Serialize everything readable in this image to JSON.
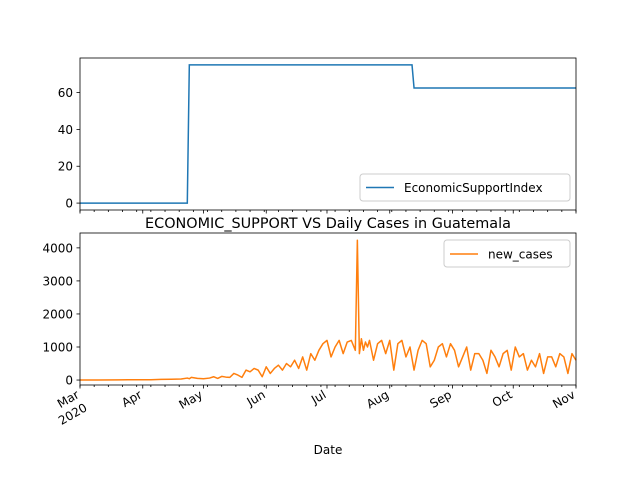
{
  "chart_data": [
    {
      "type": "line",
      "title": "",
      "xlabel": "",
      "ylabel": "",
      "ylim": [
        -3.75,
        78.75
      ],
      "yticks": [
        0,
        20,
        40,
        60
      ],
      "legend": "lower-right",
      "series": [
        {
          "name": "EconomicSupportIndex",
          "color": "#1f77b4",
          "x": [
            "2020-03-01",
            "2020-04-23",
            "2020-04-24",
            "2020-08-12",
            "2020-08-13",
            "2020-11-01"
          ],
          "values": [
            0,
            0,
            75,
            75,
            62.5,
            62.5
          ]
        }
      ]
    },
    {
      "type": "line",
      "title": "ECONOMIC_SUPPORT VS Daily Cases in Guatemala",
      "xlabel": "Date",
      "ylabel": "",
      "ylim": [
        -150,
        4450
      ],
      "yticks": [
        0,
        1000,
        2000,
        3000,
        4000
      ],
      "legend": "top-right",
      "xlim": [
        "2020-03-01",
        "2020-11-01"
      ],
      "xticks": [
        {
          "label": "Mar",
          "sub": "2020",
          "date": "2020-03-01"
        },
        {
          "label": "Apr",
          "sub": "",
          "date": "2020-04-01"
        },
        {
          "label": "May",
          "sub": "",
          "date": "2020-05-01"
        },
        {
          "label": "Jun",
          "sub": "",
          "date": "2020-06-01"
        },
        {
          "label": "Jul",
          "sub": "",
          "date": "2020-07-01"
        },
        {
          "label": "Aug",
          "sub": "",
          "date": "2020-08-01"
        },
        {
          "label": "Sep",
          "sub": "",
          "date": "2020-09-01"
        },
        {
          "label": "Oct",
          "sub": "",
          "date": "2020-10-01"
        },
        {
          "label": "Nov",
          "sub": "",
          "date": "2020-11-01"
        }
      ],
      "series": [
        {
          "name": "new_cases",
          "color": "#ff7f0e",
          "x": [
            "2020-03-01",
            "2020-03-10",
            "2020-03-20",
            "2020-03-30",
            "2020-04-05",
            "2020-04-10",
            "2020-04-15",
            "2020-04-20",
            "2020-04-23",
            "2020-04-24",
            "2020-04-25",
            "2020-04-28",
            "2020-05-01",
            "2020-05-04",
            "2020-05-06",
            "2020-05-08",
            "2020-05-10",
            "2020-05-12",
            "2020-05-14",
            "2020-05-16",
            "2020-05-18",
            "2020-05-20",
            "2020-05-22",
            "2020-05-24",
            "2020-05-26",
            "2020-05-28",
            "2020-05-30",
            "2020-06-01",
            "2020-06-03",
            "2020-06-05",
            "2020-06-07",
            "2020-06-09",
            "2020-06-11",
            "2020-06-13",
            "2020-06-15",
            "2020-06-17",
            "2020-06-19",
            "2020-06-21",
            "2020-06-23",
            "2020-06-25",
            "2020-06-27",
            "2020-06-29",
            "2020-07-01",
            "2020-07-03",
            "2020-07-05",
            "2020-07-07",
            "2020-07-09",
            "2020-07-11",
            "2020-07-13",
            "2020-07-15",
            "2020-07-16",
            "2020-07-17",
            "2020-07-18",
            "2020-07-19",
            "2020-07-20",
            "2020-07-21",
            "2020-07-22",
            "2020-07-24",
            "2020-07-26",
            "2020-07-28",
            "2020-07-30",
            "2020-08-01",
            "2020-08-03",
            "2020-08-05",
            "2020-08-07",
            "2020-08-09",
            "2020-08-11",
            "2020-08-13",
            "2020-08-15",
            "2020-08-17",
            "2020-08-19",
            "2020-08-21",
            "2020-08-23",
            "2020-08-25",
            "2020-08-27",
            "2020-08-29",
            "2020-08-31",
            "2020-09-02",
            "2020-09-04",
            "2020-09-06",
            "2020-09-08",
            "2020-09-10",
            "2020-09-12",
            "2020-09-14",
            "2020-09-16",
            "2020-09-18",
            "2020-09-20",
            "2020-09-22",
            "2020-09-24",
            "2020-09-26",
            "2020-09-28",
            "2020-09-30",
            "2020-10-02",
            "2020-10-04",
            "2020-10-06",
            "2020-10-08",
            "2020-10-10",
            "2020-10-12",
            "2020-10-14",
            "2020-10-16",
            "2020-10-18",
            "2020-10-20",
            "2020-10-22",
            "2020-10-24",
            "2020-10-26",
            "2020-10-28",
            "2020-10-30",
            "2020-11-01"
          ],
          "values": [
            0,
            1,
            5,
            10,
            10,
            20,
            25,
            30,
            60,
            40,
            80,
            50,
            40,
            60,
            100,
            50,
            110,
            90,
            80,
            200,
            150,
            80,
            300,
            250,
            350,
            300,
            100,
            400,
            200,
            350,
            450,
            300,
            500,
            400,
            600,
            350,
            700,
            300,
            800,
            600,
            900,
            1100,
            1200,
            700,
            1000,
            1200,
            800,
            1150,
            1200,
            900,
            4230,
            800,
            1250,
            900,
            1150,
            1000,
            1200,
            600,
            1100,
            1200,
            800,
            1200,
            300,
            1100,
            1200,
            700,
            1000,
            300,
            900,
            1200,
            1100,
            400,
            600,
            1000,
            1100,
            700,
            1100,
            900,
            400,
            700,
            1000,
            300,
            800,
            800,
            600,
            200,
            900,
            700,
            400,
            800,
            900,
            300,
            1000,
            700,
            800,
            300,
            600,
            400,
            800,
            200,
            700,
            700,
            400,
            800,
            700,
            200,
            800,
            600
          ]
        }
      ]
    }
  ]
}
